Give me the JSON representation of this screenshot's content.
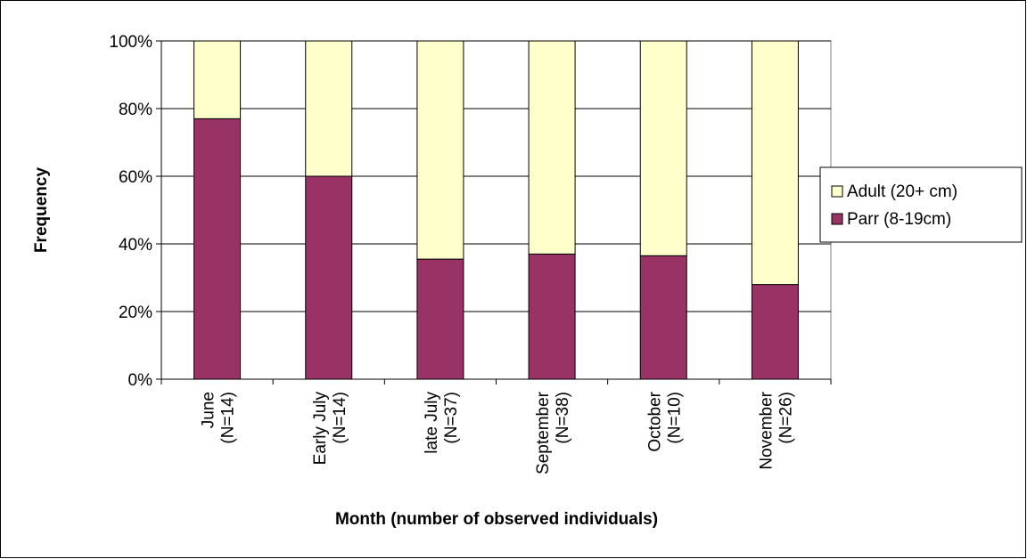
{
  "chart_data": {
    "type": "bar",
    "stacked": true,
    "percent_stacked": true,
    "title": "",
    "xlabel": "Month (number of observed individuals)",
    "ylabel": "Frequency",
    "ylim": [
      0,
      100
    ],
    "y_ticks": [
      "0%",
      "20%",
      "40%",
      "60%",
      "80%",
      "100%"
    ],
    "y_tick_values": [
      0,
      20,
      40,
      60,
      80,
      100
    ],
    "grid": true,
    "legend_position": "right",
    "categories": [
      {
        "line1": "June",
        "line2": "(N=14)"
      },
      {
        "line1": "Early July",
        "line2": "(N=14)"
      },
      {
        "line1": "late July",
        "line2": "(N=37)"
      },
      {
        "line1": "September",
        "line2": "(N=38)"
      },
      {
        "line1": "October",
        "line2": "(N=10)"
      },
      {
        "line1": "November",
        "line2": "(N=26)"
      }
    ],
    "series": [
      {
        "name": "Parr (8-19cm)",
        "color": "#993366",
        "values": [
          77,
          60,
          35.5,
          37,
          36.5,
          28
        ]
      },
      {
        "name": "Adult (20+ cm)",
        "color": "#FFFFCC",
        "values": [
          23,
          40,
          64.5,
          63,
          63.5,
          72
        ]
      }
    ],
    "legend_order": [
      "Adult (20+ cm)",
      "Parr (8-19cm)"
    ]
  }
}
